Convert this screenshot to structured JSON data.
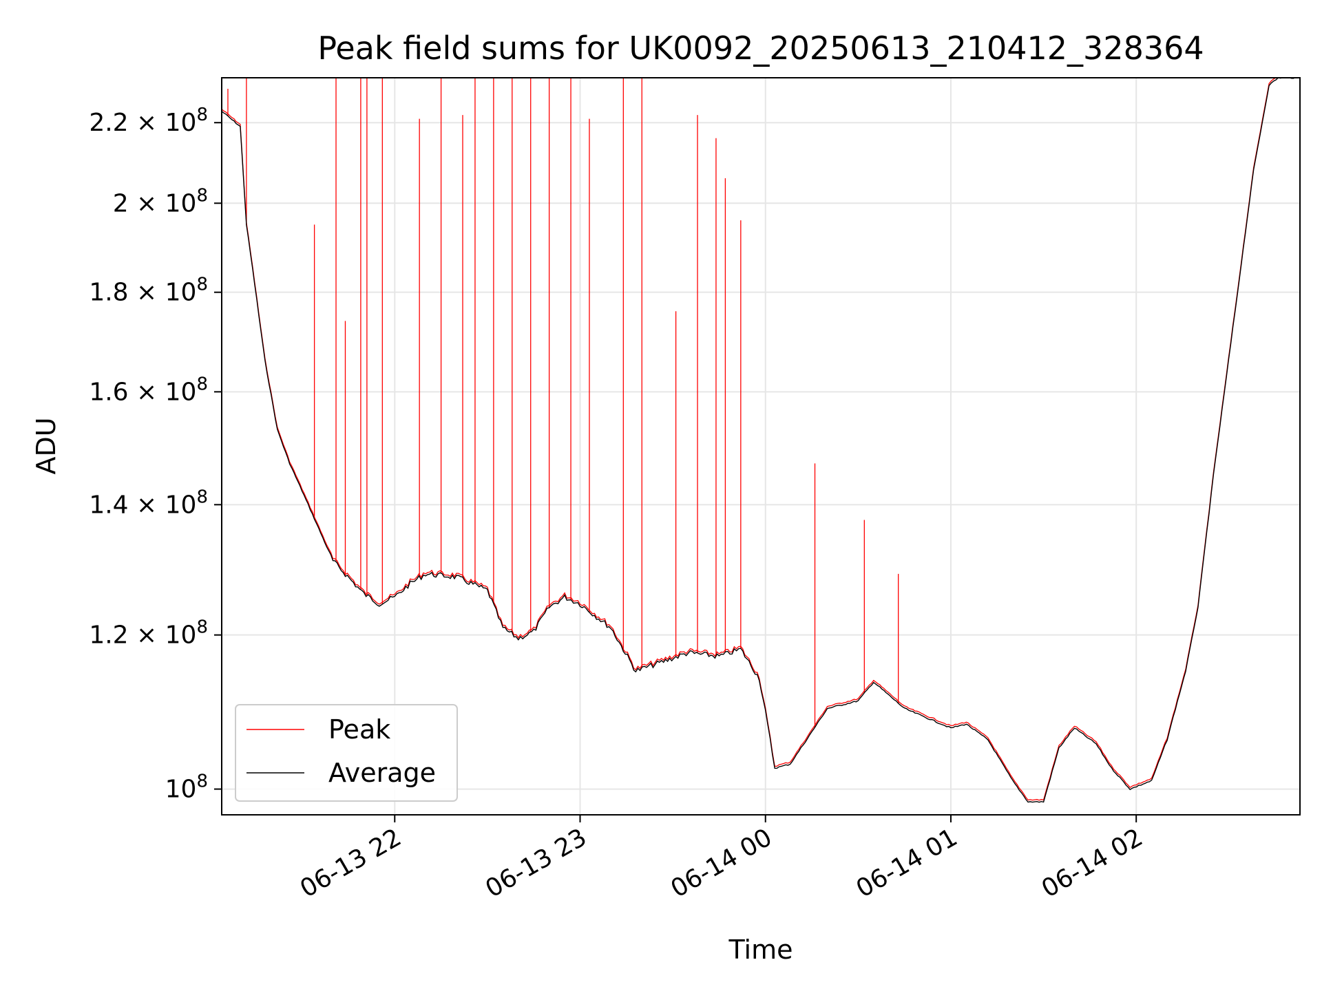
{
  "chart_data": {
    "type": "line",
    "title": "Peak field sums for UK0092_20250613_210412_328364",
    "xlabel": "Time",
    "ylabel": "ADU",
    "yscale": "log",
    "ylim": [
      97000000.0,
      232000000.0
    ],
    "xlim": [
      "2025-06-13 21:04",
      "2025-06-14 02:53"
    ],
    "grid": true,
    "legend": "lower-left",
    "x_ticks": [
      {
        "value": "2025-06-13 22:00",
        "label": "06-13 22"
      },
      {
        "value": "2025-06-13 23:00",
        "label": "06-13 23"
      },
      {
        "value": "2025-06-14 00:00",
        "label": "06-14 00"
      },
      {
        "value": "2025-06-14 01:00",
        "label": "06-14 01"
      },
      {
        "value": "2025-06-14 02:00",
        "label": "06-14 02"
      }
    ],
    "y_ticks": [
      {
        "value": 100000000.0,
        "base": "10",
        "exp": "8"
      },
      {
        "value": 120000000.0,
        "base": "1.2 × 10",
        "exp": "8"
      },
      {
        "value": 140000000.0,
        "base": "1.4 × 10",
        "exp": "8"
      },
      {
        "value": 160000000.0,
        "base": "1.6 × 10",
        "exp": "8"
      },
      {
        "value": 180000000.0,
        "base": "1.8 × 10",
        "exp": "8"
      },
      {
        "value": 200000000.0,
        "base": "2 × 10",
        "exp": "8"
      },
      {
        "value": 220000000.0,
        "base": "2.2 × 10",
        "exp": "8"
      }
    ],
    "series": [
      {
        "name": "Average",
        "color": "#000000",
        "x": [
          "2025-06-13 21:04",
          "2025-06-13 21:10",
          "2025-06-13 21:12",
          "2025-06-13 21:14",
          "2025-06-13 21:18",
          "2025-06-13 21:22",
          "2025-06-13 21:26",
          "2025-06-13 21:32",
          "2025-06-13 21:40",
          "2025-06-13 21:50",
          "2025-06-13 21:55",
          "2025-06-13 22:00",
          "2025-06-13 22:05",
          "2025-06-13 22:10",
          "2025-06-13 22:20",
          "2025-06-13 22:30",
          "2025-06-13 22:35",
          "2025-06-13 22:40",
          "2025-06-13 22:45",
          "2025-06-13 22:50",
          "2025-06-13 22:55",
          "2025-06-13 23:00",
          "2025-06-13 23:10",
          "2025-06-13 23:18",
          "2025-06-13 23:25",
          "2025-06-13 23:35",
          "2025-06-13 23:45",
          "2025-06-13 23:52",
          "2025-06-13 23:58",
          "2025-06-14 00:00",
          "2025-06-14 00:03",
          "2025-06-14 00:08",
          "2025-06-14 00:15",
          "2025-06-14 00:20",
          "2025-06-14 00:30",
          "2025-06-14 00:35",
          "2025-06-14 00:45",
          "2025-06-14 01:00",
          "2025-06-14 01:05",
          "2025-06-14 01:12",
          "2025-06-14 01:20",
          "2025-06-14 01:25",
          "2025-06-14 01:30",
          "2025-06-14 01:35",
          "2025-06-14 01:40",
          "2025-06-14 01:47",
          "2025-06-14 01:52",
          "2025-06-14 01:58",
          "2025-06-14 02:05",
          "2025-06-14 02:10",
          "2025-06-14 02:16",
          "2025-06-14 02:20",
          "2025-06-14 02:25",
          "2025-06-14 02:32",
          "2025-06-14 02:38",
          "2025-06-14 02:43",
          "2025-06-14 02:46",
          "2025-06-14 02:53"
        ],
        "y": [
          223000000.0,
          219000000.0,
          195000000.0,
          185000000.0,
          166000000.0,
          153000000.0,
          147000000.0,
          140000000.0,
          131000000.0,
          126000000.0,
          124500000.0,
          125500000.0,
          127500000.0,
          129000000.0,
          128500000.0,
          126500000.0,
          121000000.0,
          119500000.0,
          120500000.0,
          124000000.0,
          125500000.0,
          124500000.0,
          121000000.0,
          115000000.0,
          116000000.0,
          117500000.0,
          117000000.0,
          118000000.0,
          114000000.0,
          109500000.0,
          102500000.0,
          103000000.0,
          107000000.0,
          110000000.0,
          111000000.0,
          113500000.0,
          110000000.0,
          107500000.0,
          108000000.0,
          106000000.0,
          101000000.0,
          98500000.0,
          98500000.0,
          105000000.0,
          107500000.0,
          105500000.0,
          102500000.0,
          100000000.0,
          101000000.0,
          106000000.0,
          115000000.0,
          124000000.0,
          145000000.0,
          176000000.0,
          208000000.0,
          230000000.0,
          232000000.0,
          232000000.0
        ]
      },
      {
        "name": "Peak",
        "color": "#ff0000",
        "spikes": [
          {
            "x": "2025-06-13 21:06",
            "y": 229000000.0
          },
          {
            "x": "2025-06-13 21:12",
            "y": 232000000.0
          },
          {
            "x": "2025-06-13 21:34",
            "y": 195000000.0
          },
          {
            "x": "2025-06-13 21:41",
            "y": 232000000.0
          },
          {
            "x": "2025-06-13 21:44",
            "y": 174000000.0
          },
          {
            "x": "2025-06-13 21:49",
            "y": 232000000.0
          },
          {
            "x": "2025-06-13 21:51",
            "y": 232000000.0
          },
          {
            "x": "2025-06-13 21:56",
            "y": 232000000.0
          },
          {
            "x": "2025-06-13 22:08",
            "y": 221000000.0
          },
          {
            "x": "2025-06-13 22:15",
            "y": 232000000.0
          },
          {
            "x": "2025-06-13 22:22",
            "y": 222000000.0
          },
          {
            "x": "2025-06-13 22:26",
            "y": 232000000.0
          },
          {
            "x": "2025-06-13 22:32",
            "y": 232000000.0
          },
          {
            "x": "2025-06-13 22:38",
            "y": 232000000.0
          },
          {
            "x": "2025-06-13 22:44",
            "y": 232000000.0
          },
          {
            "x": "2025-06-13 22:50",
            "y": 232000000.0
          },
          {
            "x": "2025-06-13 22:57",
            "y": 232000000.0
          },
          {
            "x": "2025-06-13 23:03",
            "y": 221000000.0
          },
          {
            "x": "2025-06-13 23:14",
            "y": 232000000.0
          },
          {
            "x": "2025-06-13 23:20",
            "y": 232000000.0
          },
          {
            "x": "2025-06-13 23:31",
            "y": 176000000.0
          },
          {
            "x": "2025-06-13 23:38",
            "y": 222000000.0
          },
          {
            "x": "2025-06-13 23:44",
            "y": 216000000.0
          },
          {
            "x": "2025-06-13 23:47",
            "y": 206000000.0
          },
          {
            "x": "2025-06-13 23:52",
            "y": 196000000.0
          },
          {
            "x": "2025-06-14 00:16",
            "y": 147000000.0
          },
          {
            "x": "2025-06-14 00:32",
            "y": 137500000.0
          },
          {
            "x": "2025-06-14 00:43",
            "y": 129000000.0
          }
        ]
      }
    ]
  }
}
